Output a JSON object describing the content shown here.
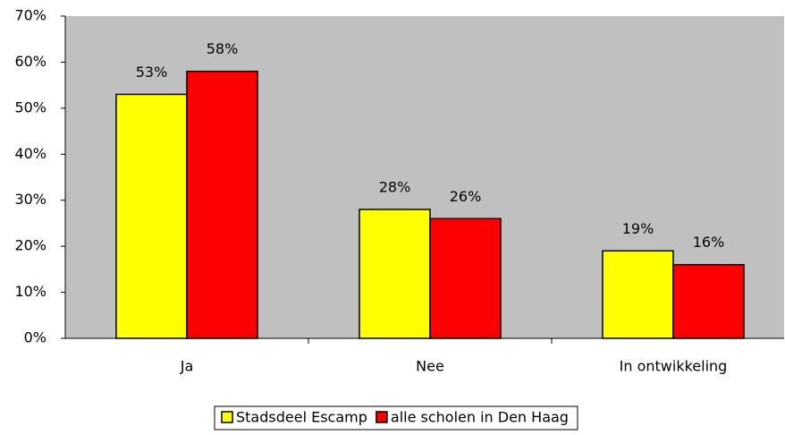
{
  "chart_data": {
    "type": "bar",
    "categories": [
      "Ja",
      "Nee",
      "In ontwikkeling"
    ],
    "series": [
      {
        "name": "Stadsdeel Escamp",
        "color": "#ffff00",
        "values": [
          53,
          28,
          19
        ],
        "value_labels": [
          "53%",
          "28%",
          "19%"
        ]
      },
      {
        "name": "alle scholen in Den Haag",
        "color": "#ff0000",
        "values": [
          58,
          26,
          16
        ],
        "value_labels": [
          "58%",
          "26%",
          "16%"
        ]
      }
    ],
    "ylim": [
      0,
      70
    ],
    "yticks": [
      {
        "value": 0,
        "label": "0%"
      },
      {
        "value": 10,
        "label": "10%"
      },
      {
        "value": 20,
        "label": "20%"
      },
      {
        "value": 30,
        "label": "30%"
      },
      {
        "value": 40,
        "label": "40%"
      },
      {
        "value": 50,
        "label": "50%"
      },
      {
        "value": 60,
        "label": "60%"
      },
      {
        "value": 70,
        "label": "70%"
      }
    ],
    "plot_background": "#c0c0c0",
    "legend": "bottom"
  }
}
